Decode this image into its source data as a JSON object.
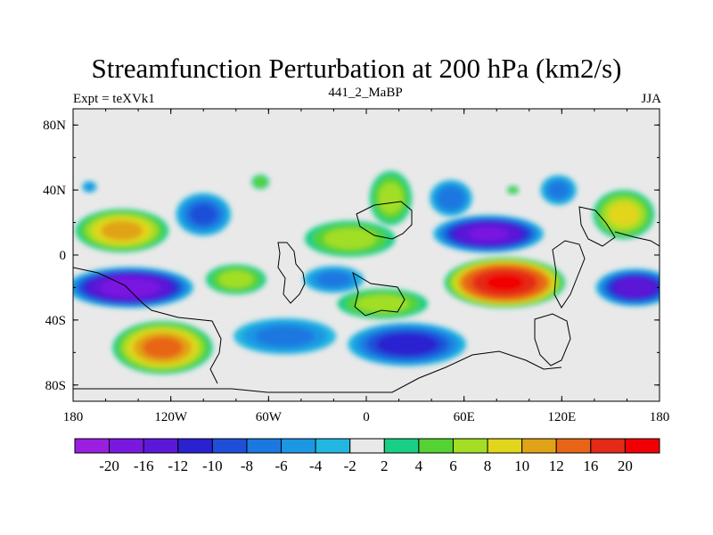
{
  "chart_data": {
    "type": "heatmap",
    "title": "Streamfunction Perturbation at 200 hPa (km2/s)",
    "left_label": "Expt = teXVk1",
    "center_label": "441_2_MaBP",
    "right_label": "JJA",
    "x_ticks": [
      "180",
      "120W",
      "60W",
      "0",
      "60E",
      "120E",
      "180"
    ],
    "x_values": [
      -180,
      -120,
      -60,
      0,
      60,
      120,
      180
    ],
    "y_ticks": [
      "80N",
      "40N",
      "0",
      "40S",
      "80S"
    ],
    "y_values": [
      80,
      40,
      0,
      -40,
      -80
    ],
    "xlim": [
      -180,
      180
    ],
    "ylim": [
      -90,
      90
    ],
    "colorbar": {
      "labels": [
        "-20",
        "-16",
        "-12",
        "-10",
        "-8",
        "-6",
        "-4",
        "-2",
        "2",
        "4",
        "6",
        "8",
        "10",
        "12",
        "16",
        "20"
      ],
      "colors": [
        "#9a1fe0",
        "#7a18e0",
        "#5c18d8",
        "#2a22d0",
        "#1f4fd8",
        "#1a78e0",
        "#1c97e3",
        "#22b7e0",
        "#e9e9e9",
        "#18cf85",
        "#55d234",
        "#a3de25",
        "#e2d61c",
        "#e0a318",
        "#e86518",
        "#e42a18",
        "#f00005"
      ]
    },
    "blobs": [
      {
        "lon": -150,
        "lat": 15,
        "rx": 30,
        "ry": 14,
        "value": 10
      },
      {
        "lon": -100,
        "lat": 25,
        "rx": 18,
        "ry": 14,
        "value": -8
      },
      {
        "lon": -145,
        "lat": -20,
        "rx": 40,
        "ry": 13,
        "value": -18
      },
      {
        "lon": -125,
        "lat": -57,
        "rx": 32,
        "ry": 17,
        "value": 12
      },
      {
        "lon": -50,
        "lat": -50,
        "rx": 34,
        "ry": 12,
        "value": -6
      },
      {
        "lon": 25,
        "lat": -55,
        "rx": 38,
        "ry": 14,
        "value": -11
      },
      {
        "lon": -80,
        "lat": -15,
        "rx": 20,
        "ry": 10,
        "value": 6
      },
      {
        "lon": -10,
        "lat": 10,
        "rx": 30,
        "ry": 12,
        "value": 6
      },
      {
        "lon": 15,
        "lat": 35,
        "rx": 14,
        "ry": 18,
        "value": 6
      },
      {
        "lon": 10,
        "lat": -30,
        "rx": 30,
        "ry": 10,
        "value": 6
      },
      {
        "lon": -20,
        "lat": -15,
        "rx": 20,
        "ry": 9,
        "value": -6
      },
      {
        "lon": 52,
        "lat": 35,
        "rx": 14,
        "ry": 12,
        "value": -7
      },
      {
        "lon": 75,
        "lat": 13,
        "rx": 35,
        "ry": 12,
        "value": -16
      },
      {
        "lon": 85,
        "lat": -17,
        "rx": 38,
        "ry": 16,
        "value": 20
      },
      {
        "lon": 118,
        "lat": 40,
        "rx": 12,
        "ry": 10,
        "value": -6
      },
      {
        "lon": 158,
        "lat": 25,
        "rx": 20,
        "ry": 16,
        "value": 8
      },
      {
        "lon": 165,
        "lat": -20,
        "rx": 25,
        "ry": 12,
        "value": -14
      },
      {
        "lon": -170,
        "lat": 42,
        "rx": 5,
        "ry": 4,
        "value": -4
      },
      {
        "lon": -65,
        "lat": 45,
        "rx": 6,
        "ry": 5,
        "value": 4
      },
      {
        "lon": 90,
        "lat": 40,
        "rx": 4,
        "ry": 3,
        "value": 4
      }
    ]
  }
}
